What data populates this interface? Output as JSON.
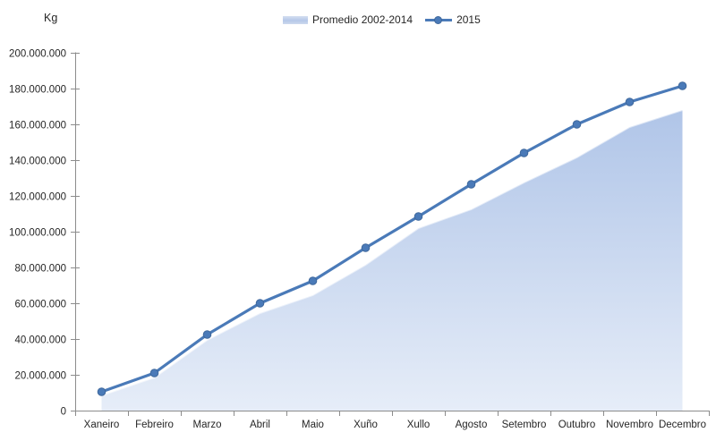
{
  "header": {
    "unit_label": "Kg"
  },
  "legend": [
    {
      "label": "Promedio 2002-2014",
      "type": "area"
    },
    {
      "label": "2015",
      "type": "line"
    }
  ],
  "chart_data": {
    "type": "area+line",
    "title": "",
    "xlabel": "",
    "ylabel": "Kg",
    "categories": [
      "Xaneiro",
      "Febreiro",
      "Marzo",
      "Abril",
      "Maio",
      "Xuño",
      "Xullo",
      "Agosto",
      "Setembro",
      "Outubro",
      "Novembro",
      "Decembro"
    ],
    "series": [
      {
        "name": "Promedio 2002-2014",
        "type": "area",
        "values": [
          8500000,
          18500000,
          39500000,
          54500000,
          64500000,
          81500000,
          102000000,
          112500000,
          127500000,
          141500000,
          158500000,
          168000000
        ]
      },
      {
        "name": "2015",
        "type": "line",
        "values": [
          10500000,
          21000000,
          42500000,
          60000000,
          72500000,
          91000000,
          108500000,
          126500000,
          144000000,
          160000000,
          172500000,
          181500000
        ]
      }
    ],
    "ylim": [
      0,
      200000000
    ],
    "ytick_step": 20000000,
    "ytick_labels": [
      "0",
      "20.000.000",
      "40.000.000",
      "60.000.000",
      "80.000.000",
      "100.000.000",
      "120.000.000",
      "140.000.000",
      "160.000.000",
      "180.000.000",
      "200.000.000"
    ],
    "grid": false,
    "legend_position": "top-center",
    "colors": {
      "line": "#4a7ab8",
      "marker_stroke": "#3f689c",
      "area_top": "#b0c5e8",
      "area_bottom": "#e6edf8",
      "area_edge_highlight": "#ffffff",
      "axis": "#8c8c8c",
      "text": "#262626"
    }
  }
}
